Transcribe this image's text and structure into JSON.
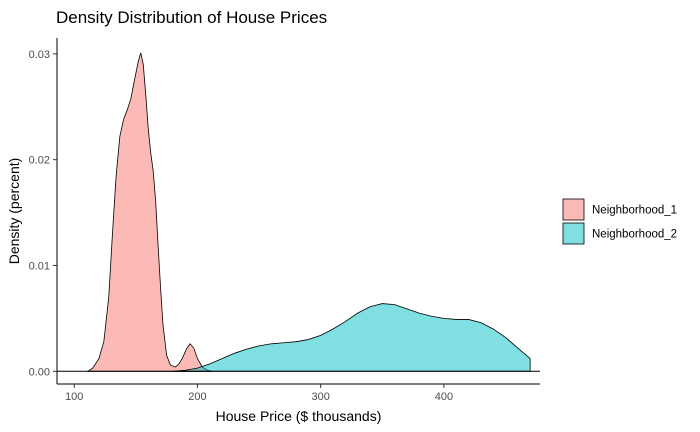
{
  "chart_data": {
    "type": "area",
    "title": "Density Distribution of House Prices",
    "xlabel": "House Price ($ thousands)",
    "ylabel": "Density (percent)",
    "xlim": [
      86,
      478
    ],
    "ylim": [
      -0.0012,
      0.0315
    ],
    "x_ticks": [
      100,
      200,
      300,
      400
    ],
    "y_ticks": [
      0.0,
      0.01,
      0.02,
      0.03
    ],
    "y_tick_labels": [
      "0.00",
      "0.01",
      "0.02",
      "0.03"
    ],
    "grid": false,
    "legend_position": "right",
    "baseline": 0,
    "series": [
      {
        "name": "Neighborhood_1",
        "color": "#F8766D",
        "points": [
          [
            111,
            0.0
          ],
          [
            115,
            0.0003
          ],
          [
            120,
            0.0012
          ],
          [
            124,
            0.0028
          ],
          [
            128,
            0.007
          ],
          [
            131,
            0.013
          ],
          [
            134,
            0.0185
          ],
          [
            137,
            0.0222
          ],
          [
            140,
            0.0238
          ],
          [
            143,
            0.0247
          ],
          [
            146,
            0.0258
          ],
          [
            149,
            0.0276
          ],
          [
            152,
            0.0293
          ],
          [
            154,
            0.0301
          ],
          [
            156,
            0.029
          ],
          [
            158,
            0.0262
          ],
          [
            160,
            0.023
          ],
          [
            162,
            0.0207
          ],
          [
            164,
            0.019
          ],
          [
            166,
            0.0162
          ],
          [
            168,
            0.012
          ],
          [
            170,
            0.008
          ],
          [
            172,
            0.0044
          ],
          [
            175,
            0.0015
          ],
          [
            178,
            0.0006
          ],
          [
            182,
            0.0004
          ],
          [
            185,
            0.0007
          ],
          [
            188,
            0.0013
          ],
          [
            191,
            0.0021
          ],
          [
            194,
            0.0026
          ],
          [
            197,
            0.0022
          ],
          [
            200,
            0.0012
          ],
          [
            204,
            0.0004
          ],
          [
            208,
            0.0001
          ],
          [
            212,
            0.0
          ]
        ]
      },
      {
        "name": "Neighborhood_2",
        "color": "#00BFC4",
        "points": [
          [
            180,
            0.0
          ],
          [
            190,
            0.0001
          ],
          [
            200,
            0.0003
          ],
          [
            210,
            0.0007
          ],
          [
            220,
            0.0012
          ],
          [
            230,
            0.0017
          ],
          [
            240,
            0.0021
          ],
          [
            250,
            0.0024
          ],
          [
            260,
            0.0026
          ],
          [
            270,
            0.0027
          ],
          [
            280,
            0.0028
          ],
          [
            290,
            0.003
          ],
          [
            300,
            0.0034
          ],
          [
            310,
            0.004
          ],
          [
            320,
            0.0047
          ],
          [
            330,
            0.0055
          ],
          [
            340,
            0.0061
          ],
          [
            350,
            0.0064
          ],
          [
            360,
            0.0063
          ],
          [
            370,
            0.0059
          ],
          [
            380,
            0.0055
          ],
          [
            390,
            0.0052
          ],
          [
            400,
            0.005
          ],
          [
            410,
            0.0049
          ],
          [
            420,
            0.0049
          ],
          [
            430,
            0.0046
          ],
          [
            440,
            0.004
          ],
          [
            450,
            0.0032
          ],
          [
            460,
            0.0022
          ],
          [
            470,
            0.0012
          ]
        ]
      }
    ]
  }
}
